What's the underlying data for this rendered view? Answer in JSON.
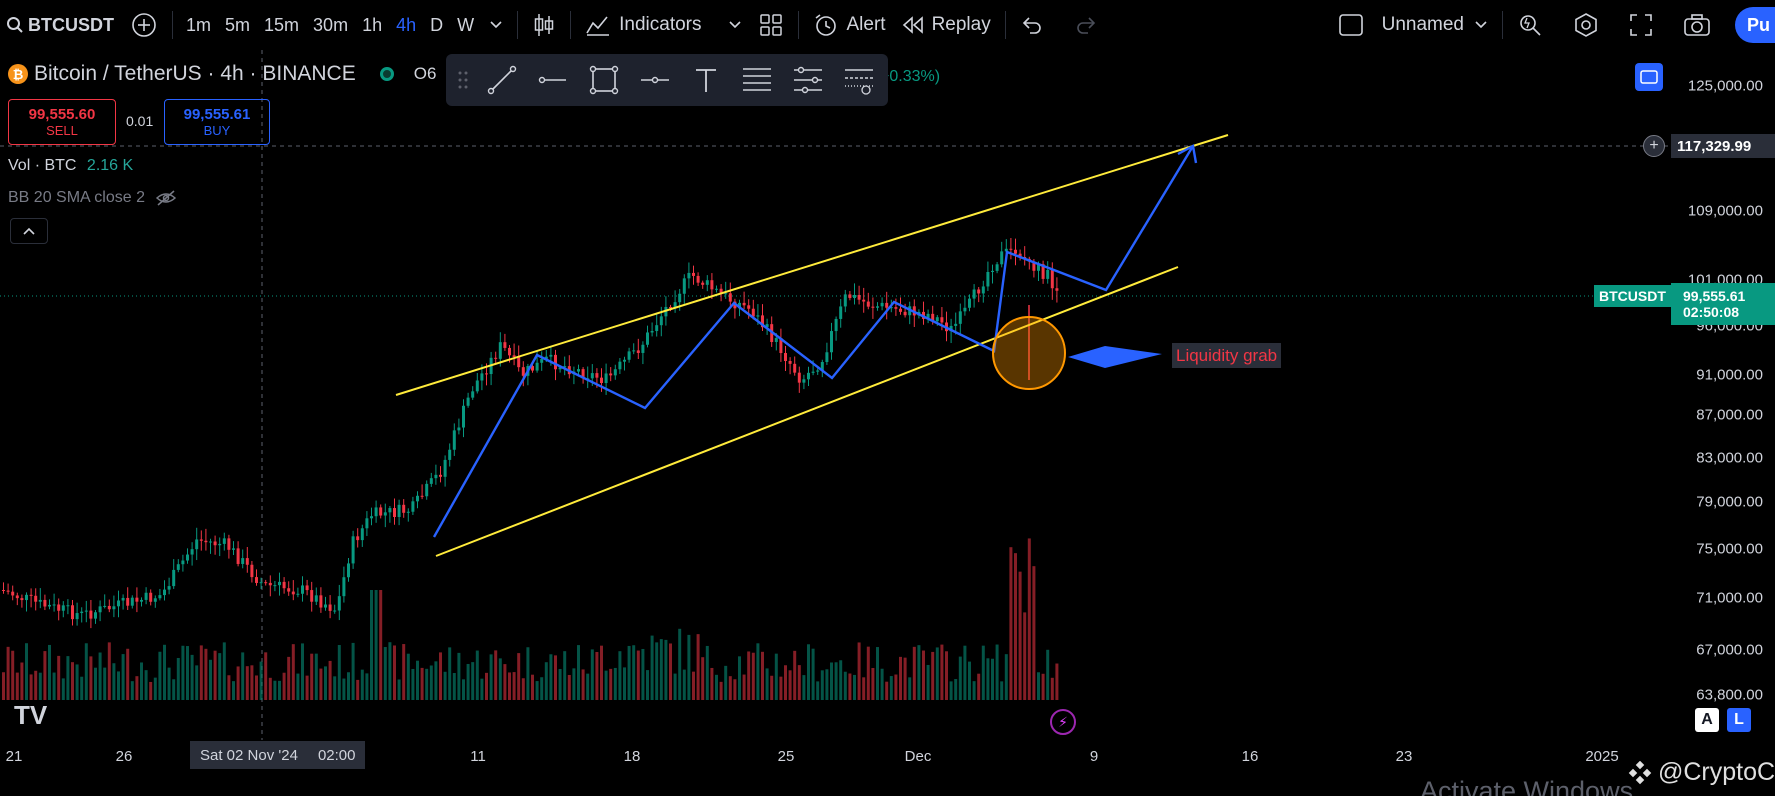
{
  "toolbar": {
    "symbol": "BTCUSDT",
    "timeframes": [
      "1m",
      "5m",
      "15m",
      "30m",
      "1h",
      "4h",
      "D",
      "W"
    ],
    "active_timeframe": "4h",
    "indicators_label": "Indicators",
    "alert_label": "Alert",
    "replay_label": "Replay",
    "layout_name": "Unnamed",
    "publish_label": "Pu"
  },
  "legend": {
    "title": "Bitcoin / TetherUS · 4h · BINANCE",
    "open_prefix": "O6",
    "change": "+0.33%)",
    "sell_price": "99,555.60",
    "sell_label": "SELL",
    "spread": "0.01",
    "buy_price": "99,555.61",
    "buy_label": "BUY",
    "volume_label": "Vol · BTC",
    "volume_value": "2.16 K",
    "bb_label": "BB 20 SMA close 2"
  },
  "price_axis": {
    "ticks": [
      "125,000.00",
      "109,000.00",
      "101,000.00",
      "96,000.00",
      "91,000.00",
      "87,000.00",
      "83,000.00",
      "79,000.00",
      "75,000.00",
      "71,000.00",
      "67,000.00",
      "63,800.00"
    ],
    "crosshair_price": "117,329.99",
    "last_price": "99,555.61",
    "countdown": "02:50:08",
    "symbol_tag": "BTCUSDT"
  },
  "time_axis": {
    "ticks": [
      "21",
      "26",
      "11",
      "18",
      "25",
      "Dec",
      "9",
      "16",
      "23",
      "2025"
    ],
    "crosshair_date": "Sat 02 Nov '24",
    "crosshair_time": "02:00"
  },
  "annotation": {
    "text": "Liquidity grab"
  },
  "footer": {
    "logo_text": "TV",
    "auto_label": "A",
    "log_label": "L",
    "watermark": "@CryptoCave",
    "os_notice": "Activate Windows"
  },
  "colors": {
    "up": "#089981",
    "down": "#f23645",
    "channel": "#ffeb3b",
    "path": "#2962ff",
    "circle": "#ff9800"
  },
  "chart_data": {
    "type": "candlestick",
    "title": "",
    "ylim": [
      63800,
      125000
    ],
    "y_scale": "log",
    "overlays": [
      "ascending channel",
      "zigzag projection to 117,329.99",
      "liquidity grab circle"
    ]
  }
}
